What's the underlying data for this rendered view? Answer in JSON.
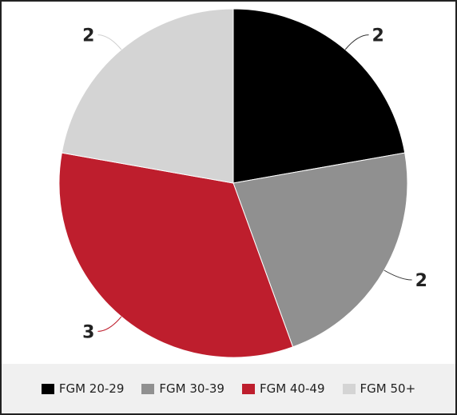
{
  "chart_data": {
    "type": "pie",
    "categories": [
      "FGM 20-29",
      "FGM 30-39",
      "FGM 40-49",
      "FGM 50+"
    ],
    "values": [
      2,
      2,
      3,
      2
    ],
    "data_labels": [
      "2",
      "2",
      "3",
      "2"
    ],
    "colors": [
      "#000000",
      "#909090",
      "#be1e2d",
      "#d4d4d4"
    ],
    "legend_position": "bottom",
    "start_angle_deg": 0,
    "direction": "clockwise"
  },
  "legend": {
    "items": [
      {
        "label": "FGM 20-29",
        "color": "#000000"
      },
      {
        "label": "FGM 30-39",
        "color": "#909090"
      },
      {
        "label": "FGM 40-49",
        "color": "#be1e2d"
      },
      {
        "label": "FGM 50+",
        "color": "#d4d4d4"
      }
    ]
  }
}
